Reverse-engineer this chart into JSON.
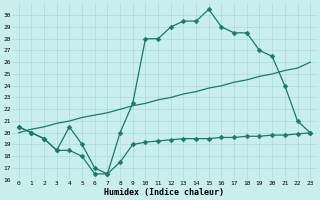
{
  "line1_x": [
    0,
    1,
    2,
    3,
    4,
    5,
    6,
    7,
    8,
    9,
    10,
    11,
    12,
    13,
    14,
    15,
    16,
    17,
    18,
    19,
    20,
    21,
    22,
    23
  ],
  "line1_y": [
    20.5,
    20.0,
    19.5,
    18.5,
    20.5,
    19.0,
    17.0,
    16.5,
    20.0,
    22.5,
    28.0,
    28.0,
    29.0,
    29.5,
    29.5,
    30.5,
    29.0,
    28.5,
    28.5,
    27.0,
    26.5,
    24.0,
    21.0,
    20.0
  ],
  "line2_x": [
    0,
    1,
    2,
    3,
    4,
    5,
    6,
    7,
    8,
    9,
    10,
    11,
    12,
    13,
    14,
    15,
    16,
    17,
    18,
    19,
    20,
    21,
    22,
    23
  ],
  "line2_y": [
    20.5,
    20.0,
    19.5,
    18.5,
    18.5,
    18.0,
    16.5,
    16.5,
    17.5,
    19.0,
    19.2,
    19.3,
    19.4,
    19.5,
    19.5,
    19.5,
    19.6,
    19.6,
    19.7,
    19.7,
    19.8,
    19.8,
    19.9,
    20.0
  ],
  "line3_x": [
    0,
    1,
    2,
    3,
    4,
    5,
    6,
    7,
    8,
    9,
    10,
    11,
    12,
    13,
    14,
    15,
    16,
    17,
    18,
    19,
    20,
    21,
    22,
    23
  ],
  "line3_y": [
    20.0,
    20.3,
    20.5,
    20.8,
    21.0,
    21.3,
    21.5,
    21.7,
    22.0,
    22.3,
    22.5,
    22.8,
    23.0,
    23.3,
    23.5,
    23.8,
    24.0,
    24.3,
    24.5,
    24.8,
    25.0,
    25.3,
    25.5,
    26.0
  ],
  "line_color": "#1a7a6a",
  "bg_color": "#c8eeee",
  "grid_color": "#aadada",
  "xlabel": "Humidex (Indice chaleur)",
  "ylim": [
    16,
    31
  ],
  "xlim": [
    -0.5,
    23.5
  ],
  "yticks": [
    16,
    17,
    18,
    19,
    20,
    21,
    22,
    23,
    24,
    25,
    26,
    27,
    28,
    29,
    30
  ],
  "xticks": [
    0,
    1,
    2,
    3,
    4,
    5,
    6,
    7,
    8,
    9,
    10,
    11,
    12,
    13,
    14,
    15,
    16,
    17,
    18,
    19,
    20,
    21,
    22,
    23
  ]
}
